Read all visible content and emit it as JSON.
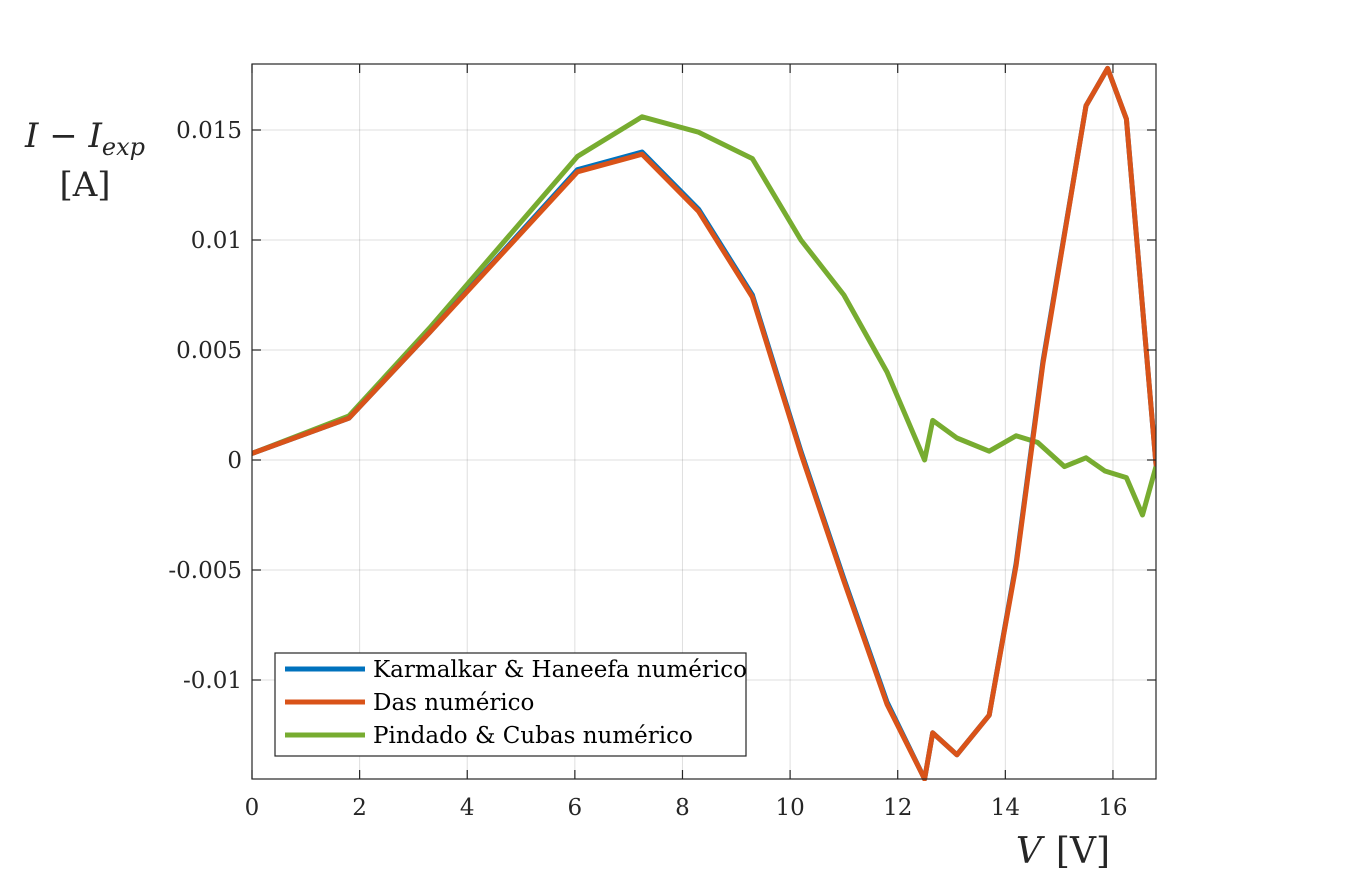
{
  "chart_data": {
    "type": "line",
    "xlabel": {
      "symbol": "V",
      "unit": "[V]"
    },
    "ylabel": {
      "main": "I − I",
      "sub": "exp",
      "unit": "[A]"
    },
    "xlim": [
      0,
      16.8
    ],
    "ylim": [
      -0.0145,
      0.018
    ],
    "xticks": [
      0,
      2,
      4,
      6,
      8,
      10,
      12,
      14,
      16
    ],
    "xtick_labels": [
      "0",
      "2",
      "4",
      "6",
      "8",
      "10",
      "12",
      "14",
      "16"
    ],
    "yticks": [
      -0.01,
      -0.005,
      0,
      0.005,
      0.01,
      0.015
    ],
    "ytick_labels": [
      "-0.01",
      "-0.005",
      "0",
      "0.005",
      "0.01",
      "0.015"
    ],
    "grid": true,
    "legend_position": "bottom-left",
    "series": [
      {
        "name": "Karmalkar & Haneefa numérico",
        "color": "#0072BD",
        "x": [
          0,
          1.8,
          3.3,
          6.05,
          7.25,
          8.3,
          9.3,
          10.2,
          11.0,
          11.8,
          12.5,
          12.65,
          13.1,
          13.7,
          14.2,
          14.7,
          15.5,
          15.9,
          16.25,
          16.8
        ],
        "y": [
          0.0003,
          0.0019,
          0.0058,
          0.0132,
          0.014,
          0.0114,
          0.0075,
          0.0004,
          -0.0054,
          -0.011,
          -0.0145,
          -0.0124,
          -0.0134,
          -0.0116,
          -0.0047,
          0.0045,
          0.0161,
          0.0178,
          0.0155,
          -0.0002
        ]
      },
      {
        "name": "Das numérico",
        "color": "#D95319",
        "x": [
          0,
          1.8,
          3.3,
          6.05,
          7.25,
          8.3,
          9.3,
          10.2,
          11.0,
          11.8,
          12.5,
          12.65,
          13.1,
          13.7,
          14.2,
          14.7,
          15.5,
          15.9,
          16.25,
          16.8
        ],
        "y": [
          0.0003,
          0.0019,
          0.0058,
          0.0131,
          0.0139,
          0.0113,
          0.0074,
          0.0003,
          -0.0055,
          -0.0111,
          -0.0145,
          -0.0124,
          -0.0134,
          -0.0116,
          -0.0048,
          0.0044,
          0.0161,
          0.0178,
          0.0155,
          -0.0002
        ]
      },
      {
        "name": "Pindado & Cubas numérico",
        "color": "#77AC30",
        "x": [
          0,
          1.8,
          3.3,
          6.05,
          7.25,
          8.3,
          9.3,
          10.2,
          11.0,
          11.8,
          12.5,
          12.65,
          13.1,
          13.7,
          14.2,
          14.6,
          15.1,
          15.5,
          15.85,
          16.25,
          16.55,
          16.8
        ],
        "y": [
          0.0003,
          0.002,
          0.006,
          0.0138,
          0.0156,
          0.0149,
          0.0137,
          0.01,
          0.0075,
          0.004,
          0.0,
          0.0018,
          0.001,
          0.0004,
          0.0011,
          0.0008,
          -0.0003,
          0.0001,
          -0.0005,
          -0.0008,
          -0.0025,
          -0.0003
        ]
      }
    ]
  }
}
